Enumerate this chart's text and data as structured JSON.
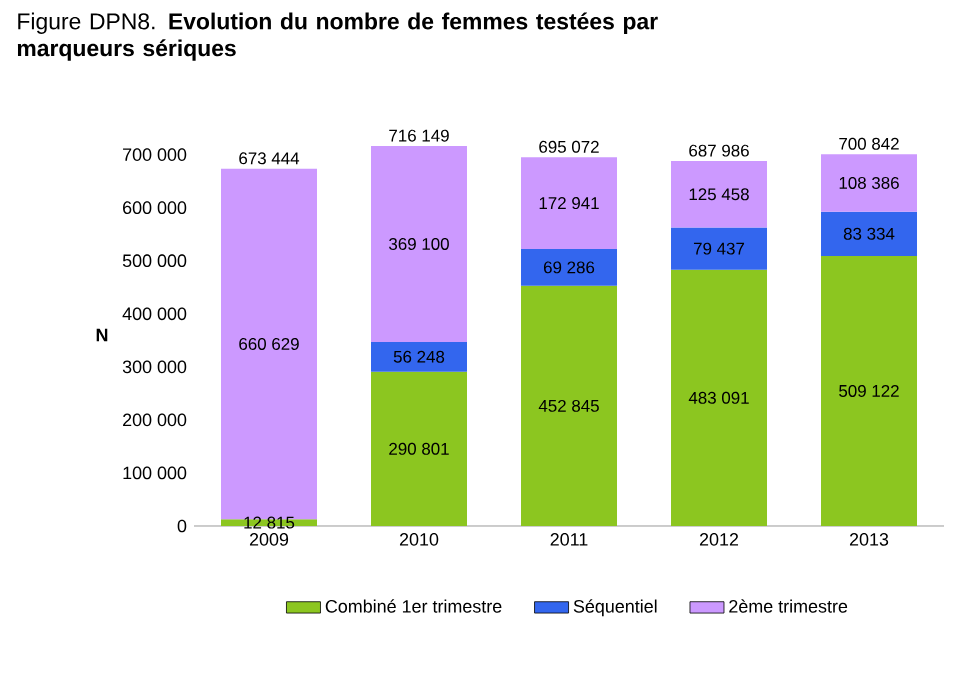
{
  "chart_data": {
    "type": "bar",
    "stacked": true,
    "title": "Figure DPN8. **Evolution du nombre de femmes testées par marqueurs sériques**",
    "ylabel": "N",
    "categories": [
      "2009",
      "2010",
      "2011",
      "2012",
      "2013"
    ],
    "series": [
      {
        "name": "Combiné 1er trimestre",
        "color": "#8cc620",
        "values": [
          12815,
          290801,
          452845,
          483091,
          509122
        ],
        "value_labels": [
          "12 815",
          "290 801",
          "452 845",
          "483 091",
          "509 122"
        ]
      },
      {
        "name": "Séquentiel",
        "color": "#3366ee",
        "values": [
          null,
          56248,
          69286,
          79437,
          83334
        ],
        "value_labels": [
          null,
          "56 248",
          "69 286",
          "79 437",
          "83 334"
        ]
      },
      {
        "name": "2ème trimestre",
        "color": "#cc99ff",
        "values": [
          660629,
          369100,
          172941,
          125458,
          108386
        ],
        "value_labels": [
          "660 629",
          "369 100",
          "172 941",
          "125 458",
          "108 386"
        ]
      }
    ],
    "totals": [
      "673 444",
      "716 149",
      "695 072",
      "687 986",
      "700 842"
    ],
    "ylim": [
      0,
      720000
    ],
    "yticks": [
      {
        "value": 0,
        "label": "0"
      },
      {
        "value": 100000,
        "label": "100 000"
      },
      {
        "value": 200000,
        "label": "200 000"
      },
      {
        "value": 300000,
        "label": "300 000"
      },
      {
        "value": 400000,
        "label": "400 000"
      },
      {
        "value": 500000,
        "label": "500 000"
      },
      {
        "value": 600000,
        "label": "600 000"
      },
      {
        "value": 700000,
        "label": "700 000"
      }
    ],
    "grid": false,
    "legend": "bottom"
  }
}
